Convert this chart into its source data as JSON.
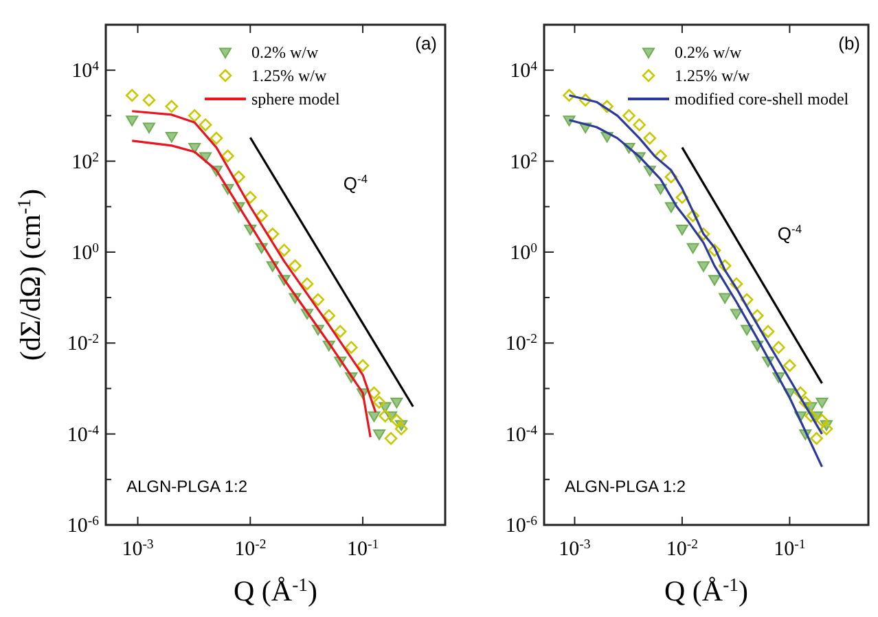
{
  "chart_data": [
    {
      "type": "scatter",
      "xlabel": "Q (Å$^{-1}$)",
      "ylabel": "(dΣ/dΩ) (cm$^{-1}$)",
      "log": "xy",
      "xlim": [
        0.00052,
        0.54
      ],
      "ylim": [
        1e-06,
        100000
      ],
      "xticks": [
        {
          "value": 0.001,
          "label": "10$^{-3}$"
        },
        {
          "value": 0.01,
          "label": "10$^{-2}$"
        },
        {
          "value": 0.1,
          "label": "10$^{-1}$"
        }
      ],
      "yticks": [
        {
          "value": 1e-06,
          "label": "10$^{-6}$"
        },
        {
          "value": 1e-05,
          "label": null
        },
        {
          "value": 0.0001,
          "label": "10$^{-4}$"
        },
        {
          "value": 0.001,
          "label": null
        },
        {
          "value": 0.01,
          "label": "10$^{-2}$"
        },
        {
          "value": 0.1,
          "label": null
        },
        {
          "value": 1,
          "label": "10$^{0}$"
        },
        {
          "value": 10,
          "label": null
        },
        {
          "value": 100,
          "label": "10$^{2}$"
        },
        {
          "value": 1000,
          "label": null
        },
        {
          "value": 10000,
          "label": "10$^{4}$"
        }
      ],
      "grid": false,
      "legend": "top right",
      "annotations": [
        "ALGN-PLGA 1:2",
        "(a)",
        "Q$^{-4}$"
      ],
      "series": [
        {
          "name": "0.2% w/w",
          "marker": "triangle",
          "color": "#6fae55",
          "x": [
            0.00089,
            0.00126,
            0.002,
            0.0032,
            0.004,
            0.005,
            0.0063,
            0.0079,
            0.01,
            0.0126,
            0.0158,
            0.02,
            0.025,
            0.032,
            0.04,
            0.05,
            0.063,
            0.079,
            0.1,
            0.126,
            0.14,
            0.158,
            0.178,
            0.2,
            0.22
          ],
          "values": [
            800,
            560,
            350,
            200,
            125,
            63,
            25,
            10,
            3.2,
            1.26,
            0.5,
            0.25,
            0.1,
            0.045,
            0.02,
            0.009,
            0.004,
            0.0018,
            0.0008,
            0.00025,
            0.0001,
            0.0004,
            0.00025,
            0.0005,
            0.00016
          ]
        },
        {
          "name": "1.25% w/w",
          "marker": "diamond",
          "color": "#c8c800",
          "x": [
            0.00089,
            0.00126,
            0.002,
            0.0032,
            0.004,
            0.005,
            0.0063,
            0.0079,
            0.01,
            0.0126,
            0.0158,
            0.02,
            0.025,
            0.032,
            0.04,
            0.05,
            0.063,
            0.079,
            0.1,
            0.126,
            0.14,
            0.158,
            0.178,
            0.2,
            0.22
          ],
          "values": [
            2800,
            2200,
            1600,
            1000,
            630,
            320,
            130,
            45,
            16,
            6.3,
            2.5,
            1.1,
            0.5,
            0.2,
            0.09,
            0.04,
            0.018,
            0.008,
            0.0032,
            0.0008,
            0.0005,
            0.00025,
            8e-05,
            0.0002,
            0.00013
          ]
        },
        {
          "name": "sphere model",
          "type": "line",
          "marker": "none",
          "color": "#e8141e",
          "x": [
            0.00089,
            0.002,
            0.0032,
            0.005,
            0.01,
            0.02,
            0.05,
            0.1,
            0.13
          ],
          "values": [
            1260,
            1050,
            710,
            200,
            10,
            0.63,
            0.025,
            0.002,
            0.0003
          ]
        },
        {
          "type": "line",
          "marker": "none",
          "color": "#e8141e",
          "x": [
            0.00089,
            0.002,
            0.0032,
            0.005,
            0.01,
            0.02,
            0.05,
            0.1,
            0.117
          ],
          "values": [
            280,
            220,
            160,
            63,
            4,
            0.25,
            0.01,
            0.0008,
            8.5e-05
          ]
        },
        {
          "type": "line",
          "marker": "none",
          "color": "#000000",
          "x": [
            0.01,
            0.28
          ],
          "values": [
            330,
            0.0004
          ]
        }
      ]
    },
    {
      "type": "scatter",
      "xlabel": "Q (Å$^{-1}$)",
      "log": "xy",
      "xlim": [
        0.00052,
        0.54
      ],
      "ylim": [
        1e-06,
        100000
      ],
      "xticks": [
        {
          "value": 0.001,
          "label": "10$^{-3}$"
        },
        {
          "value": 0.01,
          "label": "10$^{-2}$"
        },
        {
          "value": 0.1,
          "label": "10$^{-1}$"
        }
      ],
      "yticks": [
        {
          "value": 1e-06,
          "label": "10$^{-6}$"
        },
        {
          "value": 1e-05,
          "label": null
        },
        {
          "value": 0.0001,
          "label": "10$^{-4}$"
        },
        {
          "value": 0.001,
          "label": null
        },
        {
          "value": 0.01,
          "label": "10$^{-2}$"
        },
        {
          "value": 0.1,
          "label": null
        },
        {
          "value": 1,
          "label": "10$^{0}$"
        },
        {
          "value": 10,
          "label": null
        },
        {
          "value": 100,
          "label": "10$^{2}$"
        },
        {
          "value": 1000,
          "label": null
        },
        {
          "value": 10000,
          "label": "10$^{4}$"
        }
      ],
      "grid": false,
      "legend": "top right",
      "annotations": [
        "ALGN-PLGA 1:2",
        "(b)",
        "Q$^{-4}$"
      ],
      "series": [
        {
          "name": "0.2% w/w",
          "marker": "triangle",
          "color": "#6fae55",
          "x": [
            0.00089,
            0.00126,
            0.002,
            0.0032,
            0.004,
            0.005,
            0.0063,
            0.0079,
            0.01,
            0.0126,
            0.0158,
            0.02,
            0.025,
            0.032,
            0.04,
            0.05,
            0.063,
            0.079,
            0.1,
            0.126,
            0.14,
            0.158,
            0.178,
            0.2,
            0.22
          ],
          "values": [
            800,
            560,
            350,
            200,
            125,
            63,
            25,
            10,
            3.2,
            1.26,
            0.5,
            0.25,
            0.1,
            0.045,
            0.02,
            0.009,
            0.004,
            0.0018,
            0.0008,
            0.00025,
            0.0001,
            0.0004,
            0.00025,
            0.0005,
            0.00016
          ]
        },
        {
          "name": "1.25% w/w",
          "marker": "diamond",
          "color": "#c8c800",
          "x": [
            0.00089,
            0.00126,
            0.002,
            0.0032,
            0.004,
            0.005,
            0.0063,
            0.0079,
            0.01,
            0.0126,
            0.0158,
            0.02,
            0.025,
            0.032,
            0.04,
            0.05,
            0.063,
            0.079,
            0.1,
            0.126,
            0.14,
            0.158,
            0.178,
            0.2,
            0.22
          ],
          "values": [
            2800,
            2200,
            1600,
            1000,
            630,
            320,
            130,
            45,
            16,
            6.3,
            2.5,
            1.1,
            0.5,
            0.2,
            0.09,
            0.04,
            0.018,
            0.008,
            0.0032,
            0.0008,
            0.0005,
            0.00025,
            8e-05,
            0.0002,
            0.00013
          ]
        },
        {
          "name": "modified core-shell model",
          "type": "line",
          "marker": "none",
          "color": "#2b3a9a",
          "x": [
            0.00089,
            0.0016,
            0.0025,
            0.004,
            0.0056,
            0.0079,
            0.01,
            0.0126,
            0.0158,
            0.02,
            0.025,
            0.032,
            0.04,
            0.063,
            0.1,
            0.2
          ],
          "values": [
            2800,
            2000,
            1000,
            320,
            126,
            63,
            25,
            7.9,
            2.5,
            1.26,
            0.4,
            0.16,
            0.063,
            0.01,
            0.0016,
            0.0001
          ]
        },
        {
          "type": "line",
          "marker": "none",
          "color": "#2b3a9a",
          "x": [
            0.00089,
            0.0016,
            0.0025,
            0.004,
            0.0063,
            0.0089,
            0.0112,
            0.0158,
            0.02,
            0.032,
            0.05,
            0.1,
            0.2
          ],
          "values": [
            800,
            560,
            320,
            126,
            40,
            10,
            5,
            1.6,
            0.5,
            0.08,
            0.0126,
            0.00063,
            1.9e-05
          ]
        },
        {
          "type": "line",
          "marker": "none",
          "color": "#000000",
          "x": [
            0.01,
            0.2
          ],
          "values": [
            200,
            0.0013
          ]
        }
      ]
    }
  ]
}
